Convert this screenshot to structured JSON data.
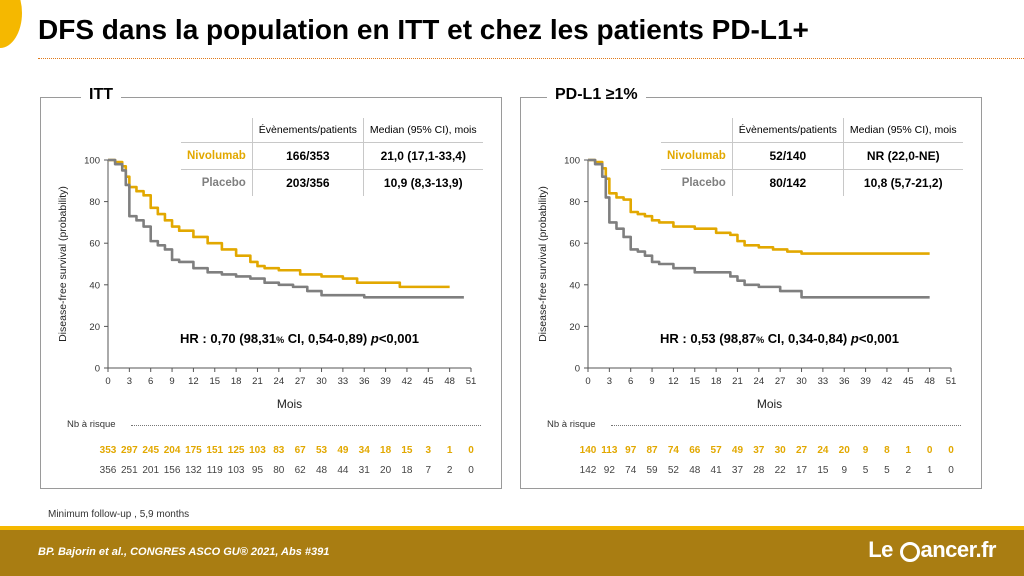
{
  "slide": {
    "title": "DFS dans la population en ITT et chez les patients PD-L1+",
    "footnote": "Minimum follow-up , 5,9 months",
    "reference": "BP. Bajorin et al., CONGRES ASCO GU® 2021, Abs #391",
    "logo": {
      "prefix": "Le ",
      "suffix": "ancer.fr"
    }
  },
  "colors": {
    "nivolumab": "#e2a800",
    "placebo": "#7f7f7f",
    "accent": "#f5b800",
    "footer": "#a97d12"
  },
  "panels": [
    {
      "title": "ITT",
      "table": {
        "headers": [
          "",
          "Évènements/patients",
          "Median (95% CI), mois"
        ],
        "rows": [
          {
            "arm": "Nivolumab",
            "events": "166/353",
            "median": "21,0 (17,1-33,4)"
          },
          {
            "arm": "Placebo",
            "events": "203/356",
            "median": "10,9 (8,3-13,9)"
          }
        ]
      },
      "hr_parts": {
        "a": "HR : 0,70 (98,31",
        "b": "%",
        "c": " CI, 0,54-0,89) ",
        "d": "p",
        "e": "<0,001"
      },
      "risk_title": "Nb à risque"
    },
    {
      "title": "PD-L1 ≥1%",
      "table": {
        "headers": [
          "",
          "Évènements/patients",
          "Median (95% CI), mois"
        ],
        "rows": [
          {
            "arm": "Nivolumab",
            "events": "52/140",
            "median": "NR (22,0-NE)"
          },
          {
            "arm": "Placebo",
            "events": "80/142",
            "median": "10,8 (5,7-21,2)"
          }
        ]
      },
      "hr_parts": {
        "a": "HR : 0,53 (98,87",
        "b": "%",
        "c": " CI, 0,34-0,84) ",
        "d": "p",
        "e": "<0,001"
      },
      "risk_title": "Nb à risque"
    }
  ],
  "chart_data": [
    {
      "type": "line",
      "title": "ITT",
      "xlabel": "Mois",
      "ylabel": "Disease-free survival (probability)",
      "xlim": [
        0,
        51
      ],
      "ylim": [
        0,
        100
      ],
      "xticks": [
        0,
        3,
        6,
        9,
        12,
        15,
        18,
        21,
        24,
        27,
        30,
        33,
        36,
        39,
        42,
        45,
        48,
        51
      ],
      "yticks": [
        0,
        20,
        40,
        60,
        80,
        100
      ],
      "series": [
        {
          "name": "Nivolumab",
          "color": "#e2a800",
          "x": [
            0,
            1,
            2,
            2.5,
            3,
            4,
            5,
            6,
            7,
            8,
            9,
            10,
            12,
            14,
            16,
            18,
            20,
            21,
            22,
            24,
            27,
            30,
            33,
            35,
            36,
            39,
            41,
            45,
            48
          ],
          "y": [
            100,
            99,
            97,
            92,
            87,
            85,
            83,
            77,
            74,
            71,
            68,
            66,
            63,
            60,
            57,
            54,
            51,
            49,
            48,
            47,
            45,
            44,
            43,
            41,
            41,
            41,
            39,
            39,
            39
          ]
        },
        {
          "name": "Placebo",
          "color": "#7f7f7f",
          "x": [
            0,
            1,
            2,
            2.5,
            3,
            4,
            5,
            6,
            7,
            8,
            9,
            10,
            12,
            14,
            16,
            18,
            20,
            22,
            24,
            26,
            28,
            30,
            33,
            35,
            36,
            40,
            45,
            50
          ],
          "y": [
            100,
            98,
            95,
            88,
            73,
            71,
            68,
            61,
            59,
            57,
            52,
            51,
            48,
            46,
            45,
            44,
            43,
            41,
            40,
            39,
            37,
            35,
            35,
            35,
            34,
            34,
            34,
            34
          ]
        }
      ],
      "risk_table": [
        {
          "name": "Nivolumab",
          "values": [
            353,
            297,
            245,
            204,
            175,
            151,
            125,
            103,
            83,
            67,
            53,
            49,
            34,
            18,
            15,
            3,
            1,
            0
          ]
        },
        {
          "name": "Placebo",
          "values": [
            356,
            251,
            201,
            156,
            132,
            119,
            103,
            95,
            80,
            62,
            48,
            44,
            31,
            20,
            18,
            7,
            2,
            0
          ]
        }
      ]
    },
    {
      "type": "line",
      "title": "PD-L1 ≥1%",
      "xlabel": "Mois",
      "ylabel": "Disease-free survival (probability)",
      "xlim": [
        0,
        51
      ],
      "ylim": [
        0,
        100
      ],
      "xticks": [
        0,
        3,
        6,
        9,
        12,
        15,
        18,
        21,
        24,
        27,
        30,
        33,
        36,
        39,
        42,
        45,
        48,
        51
      ],
      "yticks": [
        0,
        20,
        40,
        60,
        80,
        100
      ],
      "series": [
        {
          "name": "Nivolumab",
          "color": "#e2a800",
          "x": [
            0,
            1,
            2,
            2.5,
            3,
            4,
            5,
            6,
            7,
            8,
            9,
            10,
            12,
            15,
            18,
            20,
            21,
            22,
            24,
            26,
            28,
            30,
            36,
            42,
            48
          ],
          "y": [
            100,
            99,
            96,
            91,
            84,
            82,
            81,
            75,
            74,
            73,
            71,
            70,
            68,
            67,
            65,
            64,
            61,
            59,
            58,
            57,
            56,
            55,
            55,
            55,
            55
          ]
        },
        {
          "name": "Placebo",
          "color": "#7f7f7f",
          "x": [
            0,
            1,
            2,
            2.5,
            3,
            4,
            5,
            6,
            7,
            8,
            9,
            10,
            12,
            15,
            18,
            20,
            21,
            22,
            24,
            27,
            30,
            33,
            36,
            42,
            48
          ],
          "y": [
            100,
            98,
            92,
            82,
            70,
            67,
            63,
            57,
            56,
            54,
            51,
            50,
            48,
            46,
            46,
            44,
            42,
            40,
            39,
            37,
            34,
            34,
            34,
            34,
            34
          ]
        }
      ],
      "risk_table": [
        {
          "name": "Nivolumab",
          "values": [
            140,
            113,
            97,
            87,
            74,
            66,
            57,
            49,
            37,
            30,
            27,
            24,
            20,
            9,
            8,
            1,
            0,
            0
          ]
        },
        {
          "name": "Placebo",
          "values": [
            142,
            92,
            74,
            59,
            52,
            48,
            41,
            37,
            28,
            22,
            17,
            15,
            9,
            5,
            5,
            2,
            1,
            0
          ]
        }
      ]
    }
  ]
}
